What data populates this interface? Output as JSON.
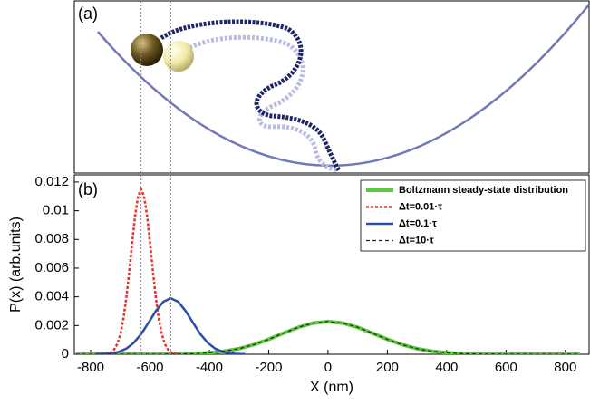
{
  "panel_a": {
    "label": "(a)"
  },
  "chart_data": {
    "type": "line",
    "subplot_label": "(b)",
    "xlabel": "X (nm)",
    "ylabel": "P(x) (arb.units)",
    "xlim": [
      -855,
      880
    ],
    "ylim": [
      0,
      0.0125
    ],
    "xticks": [
      -800,
      -600,
      -400,
      -200,
      0,
      200,
      400,
      600,
      800
    ],
    "yticks": [
      0,
      0.002,
      0.004,
      0.006,
      0.008,
      0.01,
      0.012
    ],
    "legend": "upper right",
    "series": [
      {
        "name": "Boltzmann steady-state distribution",
        "color": "#5ac83c",
        "style": "solid",
        "width": 4,
        "x": [
          -850,
          -800,
          -750,
          -700,
          -650,
          -600,
          -550,
          -500,
          -450,
          -400,
          -350,
          -300,
          -250,
          -200,
          -150,
          -100,
          -50,
          0,
          50,
          100,
          150,
          200,
          250,
          300,
          350,
          400,
          450,
          500,
          550,
          600,
          650,
          700,
          750,
          800,
          850
        ],
        "values": [
          0,
          0,
          0,
          0,
          0,
          2e-06,
          6e-06,
          1.7e-05,
          4.4e-05,
          0.0001,
          0.00021,
          0.00039,
          0.00067,
          0.00104,
          0.00147,
          0.00188,
          0.00217,
          0.00228,
          0.00217,
          0.00188,
          0.00147,
          0.00104,
          0.00067,
          0.00039,
          0.00021,
          0.0001,
          4.4e-05,
          1.7e-05,
          6e-06,
          2e-06,
          0,
          0,
          0,
          0,
          0
        ]
      },
      {
        "name": "Δt=0.01·τ",
        "color": "#e8302a",
        "style": "dotted",
        "width": 2.5,
        "x": [
          -750,
          -740,
          -730,
          -720,
          -710,
          -700,
          -690,
          -680,
          -670,
          -660,
          -650,
          -640,
          -630,
          -620,
          -610,
          -600,
          -590,
          -580,
          -570,
          -560,
          -550,
          -540,
          -530,
          -520,
          -510
        ],
        "values": [
          2e-05,
          6e-05,
          0.00015,
          0.00035,
          0.00072,
          0.00138,
          0.00243,
          0.0039,
          0.00575,
          0.0078,
          0.00967,
          0.01102,
          0.0115,
          0.01102,
          0.00967,
          0.0078,
          0.00575,
          0.0039,
          0.00243,
          0.00138,
          0.00072,
          0.00035,
          0.00015,
          6e-05,
          2e-05
        ]
      },
      {
        "name": "Δt=0.1·τ",
        "color": "#2b4fa8",
        "style": "solid",
        "width": 2.5,
        "x": [
          -780,
          -755,
          -730,
          -705,
          -680,
          -655,
          -630,
          -605,
          -580,
          -555,
          -530,
          -505,
          -480,
          -455,
          -430,
          -405,
          -380,
          -355,
          -330,
          -305,
          -280
        ],
        "values": [
          1e-05,
          2e-05,
          7e-05,
          0.00017,
          0.00039,
          0.00079,
          0.0014,
          0.0022,
          0.00302,
          0.00366,
          0.0039,
          0.00366,
          0.00302,
          0.0022,
          0.0014,
          0.00079,
          0.00039,
          0.00017,
          7e-05,
          2e-05,
          1e-05
        ]
      },
      {
        "name": "Δt=10·τ",
        "color": "#222222",
        "style": "dashed",
        "width": 1.2,
        "x": [
          -850,
          -800,
          -750,
          -700,
          -650,
          -600,
          -550,
          -500,
          -450,
          -400,
          -350,
          -300,
          -250,
          -200,
          -150,
          -100,
          -50,
          0,
          50,
          100,
          150,
          200,
          250,
          300,
          350,
          400,
          450,
          500,
          550,
          600,
          650,
          700,
          750,
          800,
          850
        ],
        "values": [
          0,
          0,
          0,
          0,
          0,
          2e-06,
          6e-06,
          1.7e-05,
          4.4e-05,
          0.0001,
          0.00021,
          0.00039,
          0.00067,
          0.00104,
          0.00147,
          0.00188,
          0.00217,
          0.00228,
          0.00217,
          0.00188,
          0.00147,
          0.00104,
          0.00067,
          0.00039,
          0.00021,
          0.0001,
          4.4e-05,
          1.7e-05,
          6e-06,
          2e-06,
          0,
          0,
          0,
          0,
          0
        ]
      }
    ],
    "markers": [
      {
        "series": 1,
        "index": 12
      },
      {
        "series": 2,
        "index": 10
      }
    ]
  }
}
